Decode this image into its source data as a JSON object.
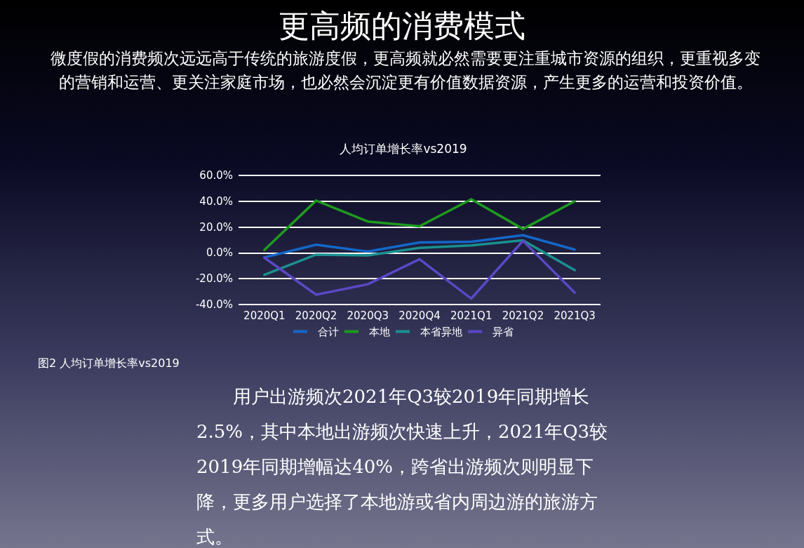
{
  "chart_data": {
    "type": "line",
    "title": "人均订单增长率vs2019",
    "subtitle": "微度假的消费频次远远高于传统的旅游度假，更高频就必然需要更注重城市资源的组织，更重视多变的营销和运营、更关注家庭市场，也必然会沉淀更有价值数据资源，产生更多的运营和投资价值。",
    "annotations": [
      "更高频的消费模式",
      "图2  人均订单增长率vs2019",
      "用户出游频次2021年Q3较2019年同期增长2.5%，其中本地出游频次快速上升，2021年Q3较2019年同期增幅达40%，跨省出游频次则明显下降，更多用户选择了本地游或省内周边游的旅游方式。"
    ],
    "categories": [
      "2020Q1",
      "2020Q2",
      "2020Q3",
      "2020Q4",
      "2021Q1",
      "2021Q2",
      "2021Q3"
    ],
    "series": [
      {
        "name": "合计",
        "color": "#1468c8",
        "values": [
          -3.5,
          6.3,
          1,
          8.1,
          8.6,
          13.7,
          2.5
        ]
      },
      {
        "name": "本地",
        "color": "#1f9a1f",
        "values": [
          2.3,
          40.5,
          24.3,
          20.6,
          41.5,
          18.5,
          40
        ]
      },
      {
        "name": "本省异地",
        "color": "#1a9090",
        "values": [
          -17,
          -1.4,
          -1.9,
          3.9,
          5.8,
          9.7,
          -13.4
        ]
      },
      {
        "name": "异省",
        "color": "#5a48c4",
        "values": [
          -3.7,
          -32.4,
          -24.3,
          -4.9,
          -35.4,
          9.3,
          -30.8
        ]
      }
    ],
    "ylim": [
      -40,
      60
    ],
    "yticks": [
      {
        "value": -40,
        "label": "-40.0%"
      },
      {
        "value": -20,
        "label": "-20.0%"
      },
      {
        "value": 0,
        "label": "0.0%"
      },
      {
        "value": 20,
        "label": "20.0%"
      },
      {
        "value": 40,
        "label": "40.0%"
      },
      {
        "value": 60,
        "label": "60.0%"
      }
    ],
    "grid": "y",
    "legend": "bottom",
    "marker": "none",
    "line_style": "solid"
  }
}
